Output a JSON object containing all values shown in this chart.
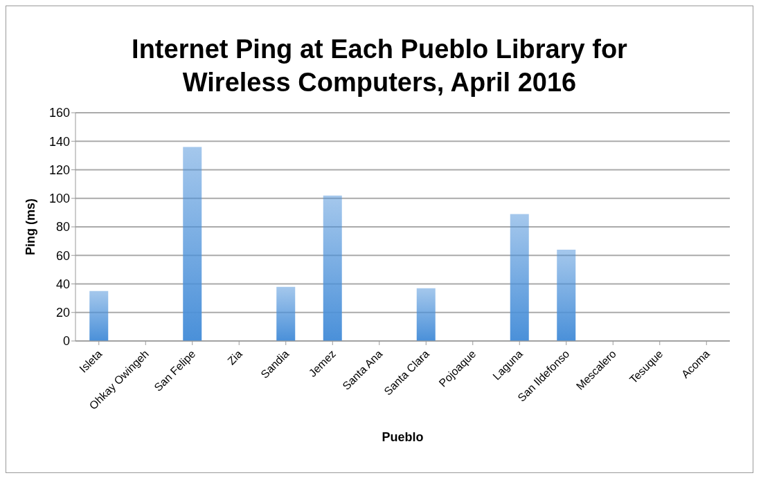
{
  "chart_data": {
    "type": "bar",
    "title": "Internet Ping at Each Pueblo Library for Wireless Computers, April 2016",
    "xlabel": "Pueblo",
    "ylabel": "Ping (ms)",
    "categories": [
      "Isleta",
      "Ohkay Owingeh",
      "San Felipe",
      "Zia",
      "Sandia",
      "Jemez",
      "Santa Ana",
      "Santa Clara",
      "Pojoaque",
      "Laguna",
      "San Ildefonso",
      "Mescalero",
      "Tesuque",
      "Acoma"
    ],
    "values": [
      35,
      0,
      136,
      0,
      38,
      102,
      0,
      37,
      0,
      89,
      64,
      0,
      0,
      0
    ],
    "color": "#4a90d9",
    "ylim": [
      0,
      160
    ],
    "yticks": [
      0,
      20,
      40,
      60,
      80,
      100,
      120,
      140,
      160
    ],
    "grid": "y",
    "legend": false
  }
}
